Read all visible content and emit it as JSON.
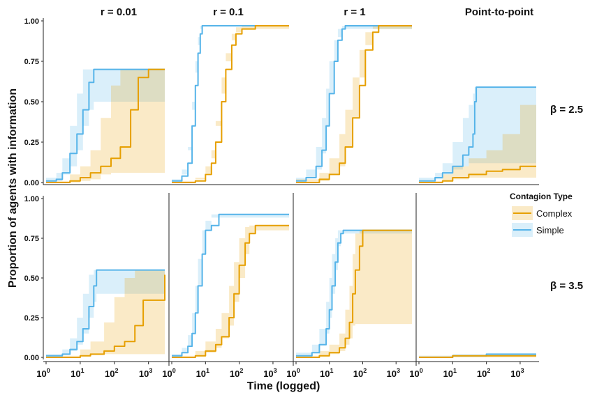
{
  "chart_data": {
    "type": "line",
    "xlabel": "Time (logged)",
    "ylabel": "Proportion of agents with information",
    "x_scale": "log10",
    "xlim": [
      1,
      3000
    ],
    "ylim": [
      0,
      1
    ],
    "x_ticks": [
      {
        "base": "10",
        "exp": "0"
      },
      {
        "base": "10",
        "exp": "1"
      },
      {
        "base": "10",
        "exp": "2"
      },
      {
        "base": "10",
        "exp": "3"
      }
    ],
    "y_ticks": [
      "0.00",
      "0.25",
      "0.50",
      "0.75",
      "1.00"
    ],
    "columns": [
      "r = 0.01",
      "r = 0.1",
      "r = 1",
      "Point-to-point"
    ],
    "rows": [
      "β = 2.5",
      "β = 3.5"
    ],
    "legend": {
      "title": "Contagion Type",
      "placement": "right",
      "entries": [
        {
          "name": "Complex",
          "color": "#E69F00"
        },
        {
          "name": "Simple",
          "color": "#56B4E9"
        }
      ]
    },
    "ribbons_shown": true,
    "panels": [
      {
        "row": "β = 2.5",
        "col": "r = 0.01",
        "series": [
          {
            "name": "Simple",
            "x": [
              1,
              2,
              3,
              5,
              8,
              12,
              18,
              25,
              40,
              3000
            ],
            "y": [
              0.01,
              0.02,
              0.06,
              0.18,
              0.3,
              0.45,
              0.62,
              0.7,
              0.7,
              0.7
            ],
            "lower": [
              0.0,
              0.0,
              0.01,
              0.05,
              0.1,
              0.2,
              0.35,
              0.45,
              0.5,
              0.5
            ],
            "upper": [
              0.03,
              0.06,
              0.15,
              0.35,
              0.55,
              0.7,
              0.7,
              0.7,
              0.7,
              0.7
            ]
          },
          {
            "name": "Complex",
            "x": [
              1,
              5,
              10,
              20,
              40,
              80,
              150,
              300,
              500,
              1000,
              3000
            ],
            "y": [
              0.0,
              0.01,
              0.03,
              0.06,
              0.1,
              0.15,
              0.22,
              0.45,
              0.65,
              0.7,
              0.7
            ],
            "lower": [
              0.0,
              0.0,
              0.0,
              0.01,
              0.02,
              0.05,
              0.06,
              0.06,
              0.06,
              0.06,
              0.06
            ],
            "upper": [
              0.01,
              0.05,
              0.1,
              0.2,
              0.4,
              0.6,
              0.7,
              0.7,
              0.7,
              0.7,
              0.7
            ]
          }
        ]
      },
      {
        "row": "β = 2.5",
        "col": "r = 0.1",
        "series": [
          {
            "name": "Simple",
            "x": [
              1,
              2,
              3,
              4,
              5,
              6,
              7,
              8,
              10,
              3000
            ],
            "y": [
              0.01,
              0.04,
              0.12,
              0.35,
              0.6,
              0.8,
              0.92,
              0.97,
              0.97,
              0.97
            ],
            "lower": [
              0.0,
              0.01,
              0.05,
              0.2,
              0.45,
              0.68,
              0.85,
              0.95,
              0.97,
              0.97
            ],
            "upper": [
              0.02,
              0.08,
              0.22,
              0.5,
              0.75,
              0.9,
              0.97,
              0.97,
              0.97,
              0.97
            ]
          },
          {
            "name": "Complex",
            "x": [
              1,
              5,
              10,
              15,
              20,
              30,
              40,
              60,
              80,
              120,
              200,
              300,
              3000
            ],
            "y": [
              0.0,
              0.01,
              0.05,
              0.12,
              0.25,
              0.5,
              0.7,
              0.85,
              0.92,
              0.95,
              0.95,
              0.97,
              0.97
            ],
            "lower": [
              0.0,
              0.0,
              0.02,
              0.06,
              0.15,
              0.35,
              0.55,
              0.75,
              0.88,
              0.93,
              0.95,
              0.95,
              0.95
            ],
            "upper": [
              0.01,
              0.03,
              0.1,
              0.2,
              0.38,
              0.65,
              0.8,
              0.92,
              0.96,
              0.97,
              0.97,
              0.97,
              0.97
            ]
          }
        ]
      },
      {
        "row": "β = 2.5",
        "col": "r = 1",
        "series": [
          {
            "name": "Simple",
            "x": [
              1,
              2,
              4,
              6,
              8,
              10,
              14,
              18,
              24,
              30,
              3000
            ],
            "y": [
              0.01,
              0.03,
              0.1,
              0.2,
              0.35,
              0.55,
              0.75,
              0.88,
              0.95,
              0.97,
              0.97
            ],
            "lower": [
              0.0,
              0.01,
              0.03,
              0.08,
              0.18,
              0.35,
              0.55,
              0.75,
              0.9,
              0.95,
              0.95
            ],
            "upper": [
              0.03,
              0.08,
              0.22,
              0.4,
              0.58,
              0.75,
              0.88,
              0.95,
              0.97,
              0.97,
              0.97
            ]
          },
          {
            "name": "Complex",
            "x": [
              1,
              5,
              10,
              20,
              30,
              50,
              80,
              120,
              200,
              300,
              3000
            ],
            "y": [
              0.0,
              0.02,
              0.05,
              0.12,
              0.22,
              0.4,
              0.6,
              0.82,
              0.93,
              0.97,
              0.97
            ],
            "lower": [
              0.0,
              0.0,
              0.01,
              0.05,
              0.1,
              0.22,
              0.4,
              0.65,
              0.85,
              0.95,
              0.95
            ],
            "upper": [
              0.02,
              0.06,
              0.15,
              0.3,
              0.45,
              0.65,
              0.82,
              0.93,
              0.97,
              0.97,
              0.97
            ]
          }
        ]
      },
      {
        "row": "β = 2.5",
        "col": "Point-to-point",
        "series": [
          {
            "name": "Simple",
            "x": [
              1,
              3,
              5,
              10,
              20,
              30,
              40,
              45,
              50,
              3000
            ],
            "y": [
              0.01,
              0.03,
              0.06,
              0.1,
              0.17,
              0.22,
              0.3,
              0.5,
              0.59,
              0.59
            ],
            "lower": [
              0.0,
              0.01,
              0.02,
              0.05,
              0.08,
              0.1,
              0.12,
              0.12,
              0.12,
              0.12
            ],
            "upper": [
              0.03,
              0.06,
              0.12,
              0.25,
              0.4,
              0.48,
              0.55,
              0.59,
              0.59,
              0.59
            ]
          },
          {
            "name": "Complex",
            "x": [
              1,
              5,
              10,
              30,
              100,
              300,
              1000,
              3000
            ],
            "y": [
              0.0,
              0.01,
              0.03,
              0.05,
              0.07,
              0.08,
              0.1,
              0.1
            ],
            "lower": [
              0.0,
              0.0,
              0.01,
              0.02,
              0.03,
              0.03,
              0.03,
              0.03
            ],
            "upper": [
              0.01,
              0.05,
              0.1,
              0.15,
              0.2,
              0.3,
              0.48,
              0.48
            ]
          }
        ]
      },
      {
        "row": "β = 3.5",
        "col": "r = 0.01",
        "series": [
          {
            "name": "Simple",
            "x": [
              1,
              3,
              5,
              8,
              12,
              18,
              25,
              30,
              40,
              3000
            ],
            "y": [
              0.01,
              0.02,
              0.05,
              0.1,
              0.18,
              0.32,
              0.45,
              0.55,
              0.55,
              0.55
            ],
            "lower": [
              0.0,
              0.01,
              0.02,
              0.04,
              0.08,
              0.15,
              0.25,
              0.35,
              0.4,
              0.4
            ],
            "upper": [
              0.02,
              0.05,
              0.12,
              0.25,
              0.4,
              0.52,
              0.55,
              0.55,
              0.55,
              0.55
            ]
          },
          {
            "name": "Complex",
            "x": [
              1,
              10,
              20,
              50,
              100,
              200,
              400,
              700,
              1500,
              3000
            ],
            "y": [
              0.0,
              0.01,
              0.02,
              0.04,
              0.07,
              0.1,
              0.2,
              0.36,
              0.36,
              0.52
            ],
            "lower": [
              0.0,
              0.0,
              0.01,
              0.02,
              0.02,
              0.02,
              0.02,
              0.02,
              0.02,
              0.02
            ],
            "upper": [
              0.01,
              0.05,
              0.1,
              0.22,
              0.38,
              0.5,
              0.55,
              0.55,
              0.55,
              0.55
            ]
          }
        ]
      },
      {
        "row": "β = 3.5",
        "col": "r = 0.1",
        "series": [
          {
            "name": "Simple",
            "x": [
              1,
              2,
              3,
              4,
              5,
              6,
              8,
              10,
              15,
              25,
              3000
            ],
            "y": [
              0.01,
              0.03,
              0.07,
              0.15,
              0.28,
              0.45,
              0.65,
              0.8,
              0.83,
              0.9,
              0.9
            ],
            "lower": [
              0.0,
              0.01,
              0.03,
              0.07,
              0.15,
              0.28,
              0.45,
              0.65,
              0.8,
              0.88,
              0.88
            ],
            "upper": [
              0.02,
              0.06,
              0.14,
              0.28,
              0.45,
              0.62,
              0.8,
              0.86,
              0.9,
              0.9,
              0.9
            ]
          },
          {
            "name": "Complex",
            "x": [
              1,
              5,
              10,
              20,
              30,
              50,
              70,
              100,
              150,
              200,
              300,
              3000
            ],
            "y": [
              0.0,
              0.01,
              0.04,
              0.08,
              0.13,
              0.25,
              0.4,
              0.58,
              0.72,
              0.78,
              0.83,
              0.83
            ],
            "lower": [
              0.0,
              0.0,
              0.01,
              0.03,
              0.06,
              0.12,
              0.2,
              0.35,
              0.5,
              0.65,
              0.78,
              0.8
            ],
            "upper": [
              0.01,
              0.04,
              0.1,
              0.18,
              0.28,
              0.45,
              0.6,
              0.75,
              0.82,
              0.83,
              0.83,
              0.83
            ]
          }
        ]
      },
      {
        "row": "β = 3.5",
        "col": "r = 1",
        "series": [
          {
            "name": "Simple",
            "x": [
              1,
              3,
              5,
              8,
              10,
              12,
              15,
              18,
              22,
              26,
              3000
            ],
            "y": [
              0.01,
              0.03,
              0.08,
              0.18,
              0.3,
              0.45,
              0.6,
              0.72,
              0.78,
              0.8,
              0.8
            ],
            "lower": [
              0.0,
              0.01,
              0.03,
              0.08,
              0.15,
              0.25,
              0.4,
              0.55,
              0.7,
              0.78,
              0.78
            ],
            "upper": [
              0.03,
              0.08,
              0.18,
              0.35,
              0.5,
              0.65,
              0.75,
              0.8,
              0.8,
              0.8,
              0.8
            ]
          },
          {
            "name": "Complex",
            "x": [
              1,
              5,
              10,
              20,
              30,
              40,
              50,
              60,
              80,
              100,
              3000
            ],
            "y": [
              0.0,
              0.01,
              0.03,
              0.06,
              0.12,
              0.22,
              0.4,
              0.55,
              0.7,
              0.8,
              0.8
            ],
            "lower": [
              0.0,
              0.0,
              0.01,
              0.02,
              0.04,
              0.08,
              0.12,
              0.2,
              0.21,
              0.21,
              0.21
            ],
            "upper": [
              0.01,
              0.04,
              0.08,
              0.15,
              0.3,
              0.45,
              0.65,
              0.78,
              0.8,
              0.8,
              0.8
            ]
          }
        ]
      },
      {
        "row": "β = 3.5",
        "col": "Point-to-point",
        "series": [
          {
            "name": "Simple",
            "x": [
              1,
              10,
              100,
              3000
            ],
            "y": [
              0.0,
              0.01,
              0.02,
              0.02
            ],
            "lower": [
              0.0,
              0.0,
              0.01,
              0.01
            ],
            "upper": [
              0.01,
              0.02,
              0.02,
              0.02
            ]
          },
          {
            "name": "Complex",
            "x": [
              1,
              10,
              100,
              3000
            ],
            "y": [
              0.0,
              0.01,
              0.01,
              0.01
            ],
            "lower": [
              0.0,
              0.0,
              0.0,
              0.0
            ],
            "upper": [
              0.01,
              0.01,
              0.01,
              0.01
            ]
          }
        ]
      }
    ]
  }
}
